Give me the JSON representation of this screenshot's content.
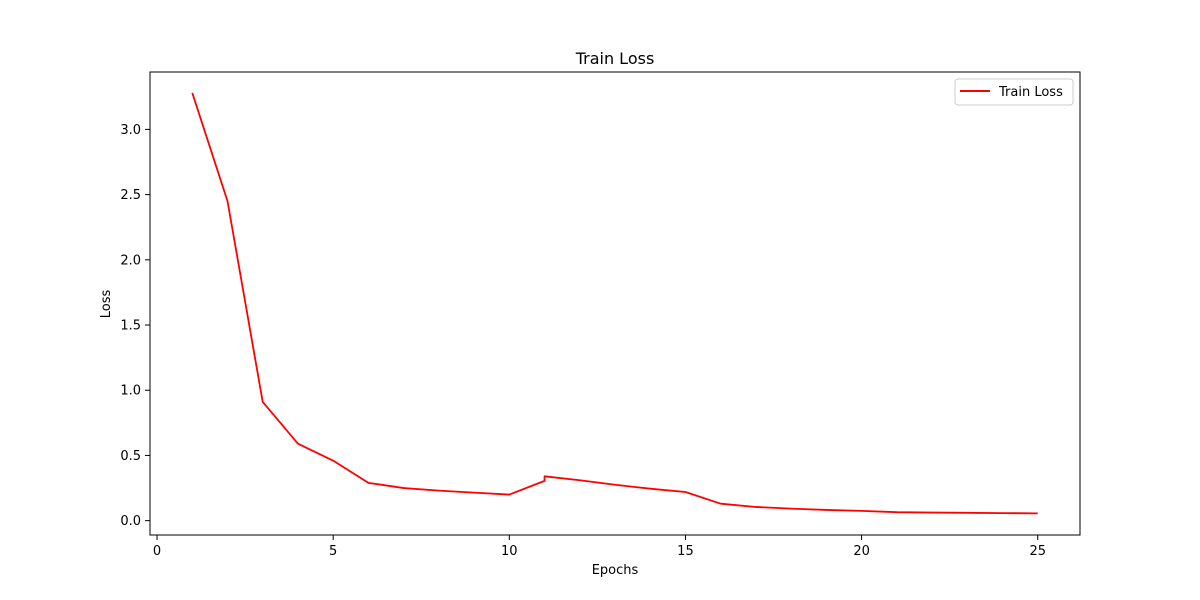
{
  "chart_data": {
    "type": "line",
    "title": "Train Loss",
    "xlabel": "Epochs",
    "ylabel": "Loss",
    "xlim": [
      -0.2,
      26.2
    ],
    "ylim": [
      -0.11,
      3.44
    ],
    "xticks": [
      0,
      5,
      10,
      15,
      20,
      25
    ],
    "yticks": [
      0.0,
      0.5,
      1.0,
      1.5,
      2.0,
      2.5,
      3.0
    ],
    "xtick_labels": [
      "0",
      "5",
      "10",
      "15",
      "20",
      "25"
    ],
    "ytick_labels": [
      "0.0",
      "0.5",
      "1.0",
      "1.5",
      "2.0",
      "2.5",
      "3.0"
    ],
    "legend_position": "top-right",
    "grid": false,
    "series": [
      {
        "name": "Train Loss",
        "color": "#ff0000",
        "x": [
          1,
          2,
          3,
          4,
          5,
          6,
          7,
          8,
          9,
          10,
          11,
          11,
          12,
          13,
          14,
          15,
          16,
          17,
          18,
          19,
          20,
          21,
          22,
          23,
          24,
          25
        ],
        "y": [
          3.28,
          2.45,
          0.91,
          0.59,
          0.46,
          0.29,
          0.25,
          0.23,
          0.215,
          0.2,
          0.305,
          0.34,
          0.31,
          0.275,
          0.245,
          0.22,
          0.13,
          0.105,
          0.092,
          0.082,
          0.075,
          0.065,
          0.062,
          0.06,
          0.058,
          0.056
        ]
      }
    ]
  }
}
